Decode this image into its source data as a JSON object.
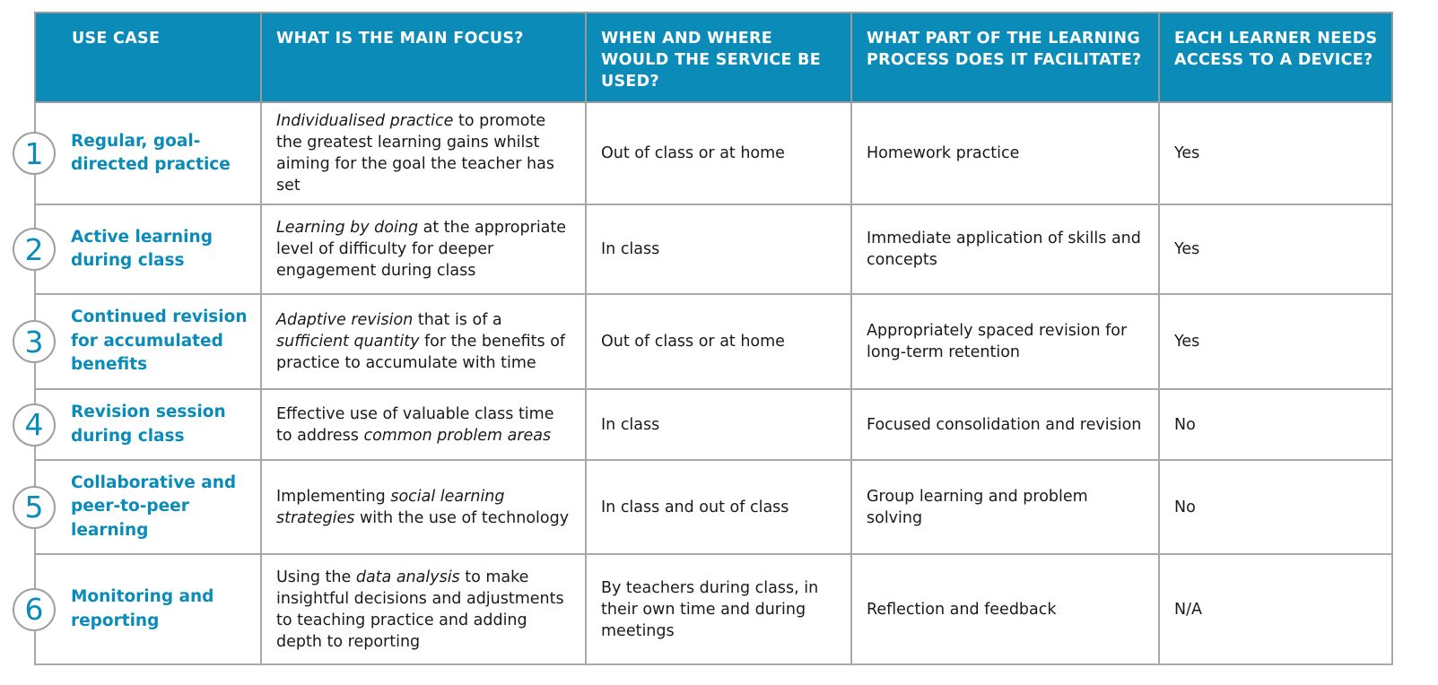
{
  "headers": [
    "USE CASE",
    "WHAT IS THE MAIN FOCUS?",
    "WHEN AND WHERE WOULD THE SERVICE BE USED?",
    "WHAT PART OF THE LEARNING PROCESS DOES IT FACILITATE?",
    "EACH LEARNER NEEDS ACCESS TO A DEVICE?"
  ],
  "rows": [
    {
      "number": "1",
      "use_case": "Regular, goal-directed practice",
      "focus": {
        "em1": "Individualised practice",
        "t1": " to promote the greatest learning gains whilst aiming for the goal the teacher has set"
      },
      "when_where": "Out of class or at home",
      "process": "Homework practice",
      "device": "Yes"
    },
    {
      "number": "2",
      "use_case": "Active learning during class",
      "focus": {
        "em1": "Learning by doing",
        "t1": " at the appropriate level of difficulty for deeper engagement during class"
      },
      "when_where": "In class",
      "process": "Immediate application of skills and concepts",
      "device": "Yes"
    },
    {
      "number": "3",
      "use_case": "Continued revision for accumulated benefits",
      "focus": {
        "em1": "Adaptive revision",
        "t1": " that is of a ",
        "em2": "sufficient quantity",
        "t2": " for the benefits of practice to accumulate with time"
      },
      "when_where": "Out of class or at home",
      "process": "Appropriately spaced revision for long-term retention",
      "device": "Yes"
    },
    {
      "number": "4",
      "use_case": "Revision session during class",
      "focus": {
        "t0": "Effective use of valuable class time to address ",
        "em1": "common problem areas"
      },
      "when_where": "In class",
      "process": "Focused consolidation and revision",
      "device": "No"
    },
    {
      "number": "5",
      "use_case": "Collaborative and peer-to-peer learning",
      "focus": {
        "t0": "Implementing ",
        "em1": "social learning strategies",
        "t1": " with the use of technology"
      },
      "when_where": "In class and out of class",
      "process": "Group learning and problem solving",
      "device": "No"
    },
    {
      "number": "6",
      "use_case": "Monitoring and reporting",
      "focus": {
        "t0": "Using the ",
        "em1": "data analysis",
        "t1": " to make insightful decisions and adjustments to teaching practice and adding depth to reporting"
      },
      "when_where": "By teachers during class, in their own time and during meetings",
      "process": "Reflection and feedback",
      "device": "N/A"
    }
  ]
}
